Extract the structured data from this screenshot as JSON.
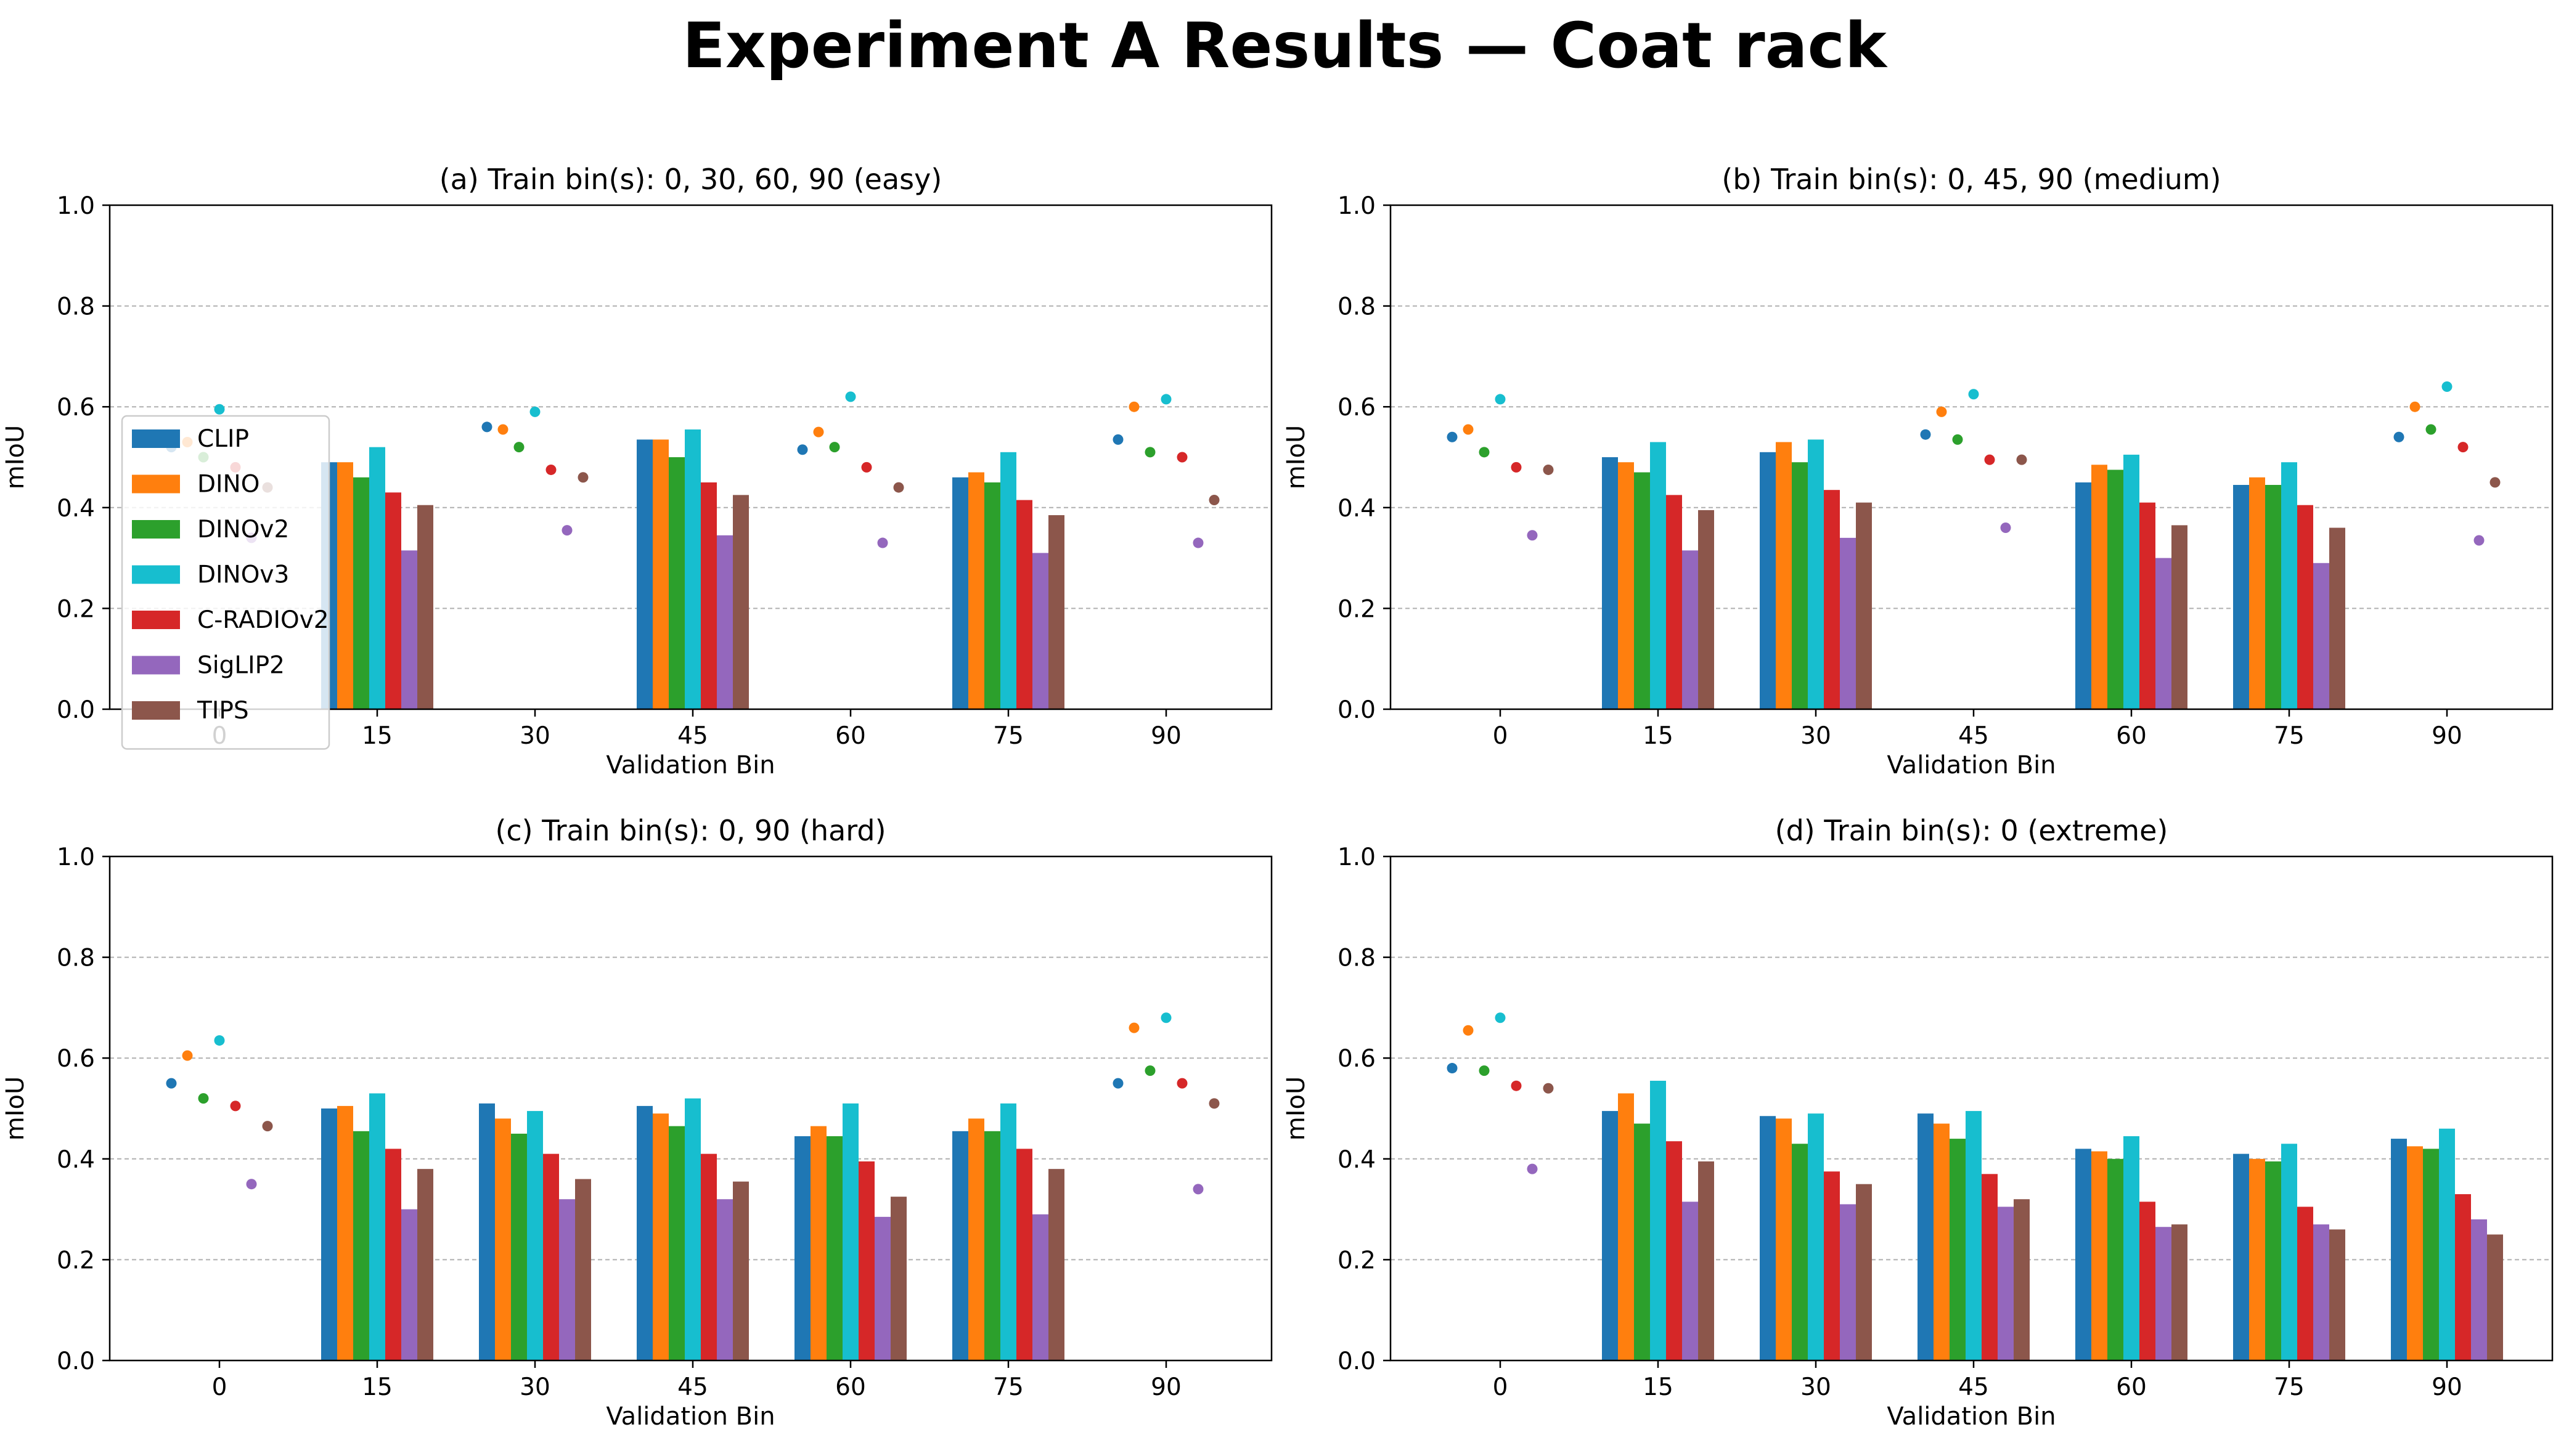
{
  "figure": {
    "title": "Experiment A Results — Coat rack"
  },
  "legend": {
    "position": "center-left of panel (a)",
    "entries": [
      "CLIP",
      "DINO",
      "DINOv2",
      "DINOv3",
      "C-RADIOv2",
      "SigLIP2",
      "TIPS"
    ]
  },
  "colors": {
    "CLIP": "#1f77b4",
    "DINO": "#ff7f0e",
    "DINOv2": "#2ca02c",
    "DINOv3": "#17becf",
    "C-RADIOv2": "#d62728",
    "SigLIP2": "#9467bd",
    "TIPS": "#8c564b"
  },
  "chart_data": [
    {
      "type": "bar",
      "title": "(a) Train bin(s): 0, 30, 60, 90 (easy)",
      "xlabel": "Validation Bin",
      "ylabel": "mIoU",
      "ylim": [
        0,
        1.0
      ],
      "yticks": [
        "0.0",
        "0.2",
        "0.4",
        "0.6",
        "0.8",
        "1.0"
      ],
      "categories": [
        "0",
        "15",
        "30",
        "45",
        "60",
        "75",
        "90"
      ],
      "train_bins": [
        "0",
        "30",
        "60",
        "90"
      ],
      "grid": "y dashed",
      "series": [
        {
          "name": "CLIP",
          "values": [
            0.52,
            0.49,
            0.56,
            0.535,
            0.515,
            0.46,
            0.535
          ]
        },
        {
          "name": "DINO",
          "values": [
            0.53,
            0.49,
            0.555,
            0.535,
            0.55,
            0.47,
            0.6
          ]
        },
        {
          "name": "DINOv2",
          "values": [
            0.5,
            0.46,
            0.52,
            0.5,
            0.52,
            0.45,
            0.51
          ]
        },
        {
          "name": "DINOv3",
          "values": [
            0.595,
            0.52,
            0.59,
            0.555,
            0.62,
            0.51,
            0.615
          ]
        },
        {
          "name": "C-RADIOv2",
          "values": [
            0.48,
            0.43,
            0.475,
            0.45,
            0.48,
            0.415,
            0.5
          ]
        },
        {
          "name": "SigLIP2",
          "values": [
            0.34,
            0.315,
            0.355,
            0.345,
            0.33,
            0.31,
            0.33
          ]
        },
        {
          "name": "TIPS",
          "values": [
            0.44,
            0.405,
            0.46,
            0.425,
            0.44,
            0.385,
            0.415
          ]
        }
      ]
    },
    {
      "type": "bar",
      "title": "(b) Train bin(s): 0, 45, 90 (medium)",
      "xlabel": "Validation Bin",
      "ylabel": "mIoU",
      "ylim": [
        0,
        1.0
      ],
      "yticks": [
        "0.0",
        "0.2",
        "0.4",
        "0.6",
        "0.8",
        "1.0"
      ],
      "categories": [
        "0",
        "15",
        "30",
        "45",
        "60",
        "75",
        "90"
      ],
      "train_bins": [
        "0",
        "45",
        "90"
      ],
      "grid": "y dashed",
      "series": [
        {
          "name": "CLIP",
          "values": [
            0.54,
            0.5,
            0.51,
            0.545,
            0.45,
            0.445,
            0.54
          ]
        },
        {
          "name": "DINO",
          "values": [
            0.555,
            0.49,
            0.53,
            0.59,
            0.485,
            0.46,
            0.6
          ]
        },
        {
          "name": "DINOv2",
          "values": [
            0.51,
            0.47,
            0.49,
            0.535,
            0.475,
            0.445,
            0.555
          ]
        },
        {
          "name": "DINOv3",
          "values": [
            0.615,
            0.53,
            0.535,
            0.625,
            0.505,
            0.49,
            0.64
          ]
        },
        {
          "name": "C-RADIOv2",
          "values": [
            0.48,
            0.425,
            0.435,
            0.495,
            0.41,
            0.405,
            0.52
          ]
        },
        {
          "name": "SigLIP2",
          "values": [
            0.345,
            0.315,
            0.34,
            0.36,
            0.3,
            0.29,
            0.335
          ]
        },
        {
          "name": "TIPS",
          "values": [
            0.475,
            0.395,
            0.41,
            0.495,
            0.365,
            0.36,
            0.45
          ]
        }
      ]
    },
    {
      "type": "bar",
      "title": "(c) Train bin(s): 0, 90 (hard)",
      "xlabel": "Validation Bin",
      "ylabel": "mIoU",
      "ylim": [
        0,
        1.0
      ],
      "yticks": [
        "0.0",
        "0.2",
        "0.4",
        "0.6",
        "0.8",
        "1.0"
      ],
      "categories": [
        "0",
        "15",
        "30",
        "45",
        "60",
        "75",
        "90"
      ],
      "train_bins": [
        "0",
        "90"
      ],
      "grid": "y dashed",
      "series": [
        {
          "name": "CLIP",
          "values": [
            0.55,
            0.5,
            0.51,
            0.505,
            0.445,
            0.455,
            0.55
          ]
        },
        {
          "name": "DINO",
          "values": [
            0.605,
            0.505,
            0.48,
            0.49,
            0.465,
            0.48,
            0.66
          ]
        },
        {
          "name": "DINOv2",
          "values": [
            0.52,
            0.455,
            0.45,
            0.465,
            0.445,
            0.455,
            0.575
          ]
        },
        {
          "name": "DINOv3",
          "values": [
            0.635,
            0.53,
            0.495,
            0.52,
            0.51,
            0.51,
            0.68
          ]
        },
        {
          "name": "C-RADIOv2",
          "values": [
            0.505,
            0.42,
            0.41,
            0.41,
            0.395,
            0.42,
            0.55
          ]
        },
        {
          "name": "SigLIP2",
          "values": [
            0.35,
            0.3,
            0.32,
            0.32,
            0.285,
            0.29,
            0.34
          ]
        },
        {
          "name": "TIPS",
          "values": [
            0.465,
            0.38,
            0.36,
            0.355,
            0.325,
            0.38,
            0.51
          ]
        }
      ]
    },
    {
      "type": "bar",
      "title": "(d) Train bin(s): 0 (extreme)",
      "xlabel": "Validation Bin",
      "ylabel": "mIoU",
      "ylim": [
        0,
        1.0
      ],
      "yticks": [
        "0.0",
        "0.2",
        "0.4",
        "0.6",
        "0.8",
        "1.0"
      ],
      "categories": [
        "0",
        "15",
        "30",
        "45",
        "60",
        "75",
        "90"
      ],
      "train_bins": [
        "0"
      ],
      "grid": "y dashed",
      "series": [
        {
          "name": "CLIP",
          "values": [
            0.58,
            0.495,
            0.485,
            0.49,
            0.42,
            0.41,
            0.44
          ]
        },
        {
          "name": "DINO",
          "values": [
            0.655,
            0.53,
            0.48,
            0.47,
            0.415,
            0.4,
            0.425
          ]
        },
        {
          "name": "DINOv2",
          "values": [
            0.575,
            0.47,
            0.43,
            0.44,
            0.4,
            0.395,
            0.42
          ]
        },
        {
          "name": "DINOv3",
          "values": [
            0.68,
            0.555,
            0.49,
            0.495,
            0.445,
            0.43,
            0.46
          ]
        },
        {
          "name": "C-RADIOv2",
          "values": [
            0.545,
            0.435,
            0.375,
            0.37,
            0.315,
            0.305,
            0.33
          ]
        },
        {
          "name": "SigLIP2",
          "values": [
            0.38,
            0.315,
            0.31,
            0.305,
            0.265,
            0.27,
            0.28
          ]
        },
        {
          "name": "TIPS",
          "values": [
            0.54,
            0.395,
            0.35,
            0.32,
            0.27,
            0.26,
            0.25
          ]
        }
      ]
    }
  ]
}
